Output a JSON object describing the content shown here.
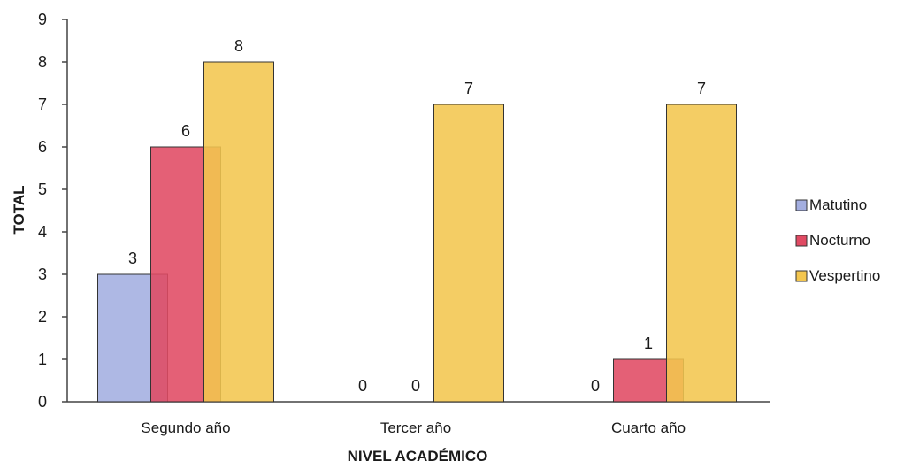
{
  "chart_data": {
    "type": "bar",
    "title": "",
    "xlabel": "NIVEL ACADÉMICO",
    "ylabel": "TOTAL",
    "ylim": [
      0,
      9
    ],
    "yticks": [
      0,
      1,
      2,
      3,
      4,
      5,
      6,
      7,
      8,
      9
    ],
    "categories": [
      "Segundo año",
      "Tercer año",
      "Cuarto año"
    ],
    "series": [
      {
        "name": "Matutino",
        "values": [
          3,
          0,
          0
        ],
        "color": "#a3aee0"
      },
      {
        "name": "Nocturno",
        "values": [
          6,
          0,
          1
        ],
        "color": "#e04a63"
      },
      {
        "name": "Vespertino",
        "values": [
          8,
          7,
          7
        ],
        "color": "#f3c64f"
      }
    ],
    "data_labels": true,
    "grid": false,
    "legend_position": "right"
  }
}
